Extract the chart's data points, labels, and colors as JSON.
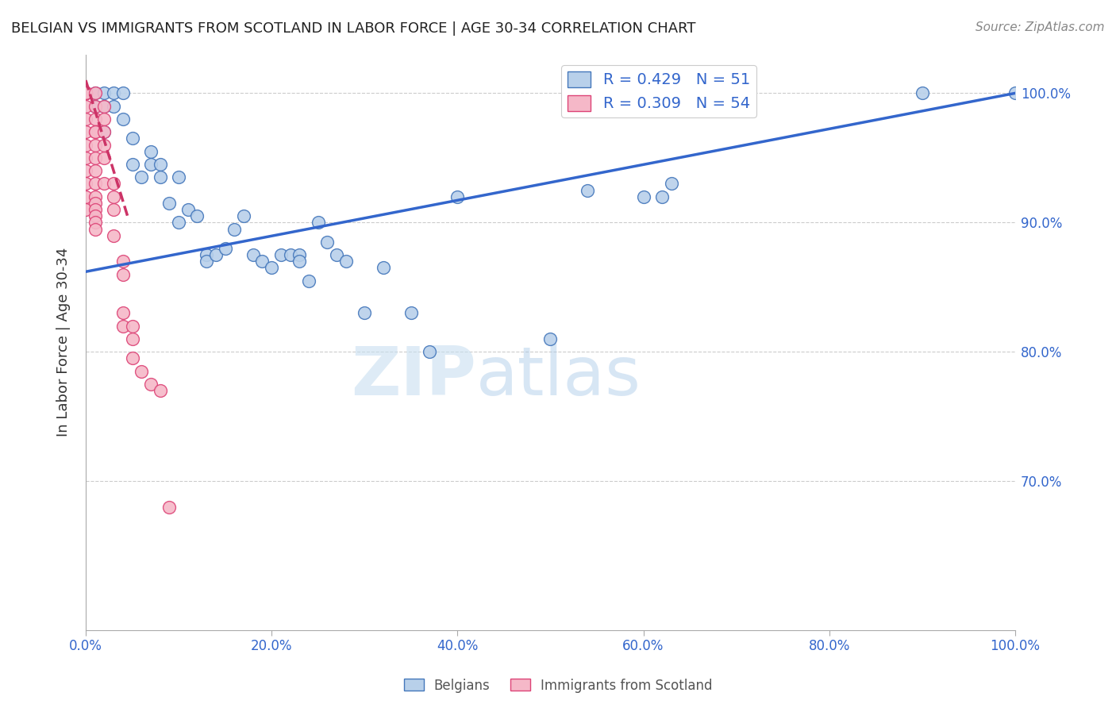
{
  "title": "BELGIAN VS IMMIGRANTS FROM SCOTLAND IN LABOR FORCE | AGE 30-34 CORRELATION CHART",
  "source": "Source: ZipAtlas.com",
  "ylabel": "In Labor Force | Age 30-34",
  "xlim": [
    0.0,
    1.0
  ],
  "ylim": [
    0.585,
    1.03
  ],
  "yticks": [
    0.7,
    0.8,
    0.9,
    1.0
  ],
  "ytick_labels": [
    "70.0%",
    "80.0%",
    "90.0%",
    "100.0%"
  ],
  "xtick_labels": [
    "0.0%",
    "20.0%",
    "40.0%",
    "60.0%",
    "80.0%",
    "100.0%"
  ],
  "xticks": [
    0.0,
    0.2,
    0.4,
    0.6,
    0.8,
    1.0
  ],
  "blue_R": 0.429,
  "blue_N": 51,
  "pink_R": 0.309,
  "pink_N": 54,
  "blue_color": "#b8d0ea",
  "pink_color": "#f5b8c8",
  "blue_edge_color": "#4477bb",
  "pink_edge_color": "#dd4477",
  "blue_line_color": "#3366cc",
  "pink_line_color": "#cc3366",
  "watermark_zip": "ZIP",
  "watermark_atlas": "atlas",
  "blue_scatter_x": [
    0.01,
    0.01,
    0.02,
    0.02,
    0.02,
    0.03,
    0.03,
    0.04,
    0.04,
    0.05,
    0.05,
    0.06,
    0.07,
    0.07,
    0.08,
    0.08,
    0.09,
    0.1,
    0.1,
    0.11,
    0.12,
    0.13,
    0.13,
    0.14,
    0.15,
    0.16,
    0.17,
    0.18,
    0.19,
    0.2,
    0.21,
    0.22,
    0.23,
    0.23,
    0.24,
    0.25,
    0.26,
    0.27,
    0.28,
    0.3,
    0.32,
    0.35,
    0.37,
    0.4,
    0.5,
    0.54,
    0.6,
    0.62,
    0.63,
    0.9,
    1.0
  ],
  "blue_scatter_y": [
    1.0,
    0.99,
    1.0,
    0.99,
    0.97,
    1.0,
    0.99,
    1.0,
    0.98,
    0.965,
    0.945,
    0.935,
    0.955,
    0.945,
    0.945,
    0.935,
    0.915,
    0.935,
    0.9,
    0.91,
    0.905,
    0.875,
    0.87,
    0.875,
    0.88,
    0.895,
    0.905,
    0.875,
    0.87,
    0.865,
    0.875,
    0.875,
    0.875,
    0.87,
    0.855,
    0.9,
    0.885,
    0.875,
    0.87,
    0.83,
    0.865,
    0.83,
    0.8,
    0.92,
    0.81,
    0.925,
    0.92,
    0.92,
    0.93,
    1.0,
    1.0
  ],
  "pink_scatter_x": [
    0.0,
    0.0,
    0.0,
    0.0,
    0.0,
    0.0,
    0.0,
    0.0,
    0.0,
    0.0,
    0.0,
    0.0,
    0.0,
    0.0,
    0.0,
    0.0,
    0.0,
    0.0,
    0.01,
    0.01,
    0.01,
    0.01,
    0.01,
    0.01,
    0.01,
    0.01,
    0.01,
    0.01,
    0.01,
    0.01,
    0.01,
    0.01,
    0.01,
    0.02,
    0.02,
    0.02,
    0.02,
    0.02,
    0.02,
    0.03,
    0.03,
    0.03,
    0.03,
    0.04,
    0.04,
    0.04,
    0.04,
    0.05,
    0.05,
    0.05,
    0.06,
    0.07,
    0.08,
    0.09
  ],
  "pink_scatter_y": [
    1.0,
    1.0,
    1.0,
    1.0,
    1.0,
    1.0,
    1.0,
    1.0,
    1.0,
    0.99,
    0.98,
    0.97,
    0.96,
    0.95,
    0.94,
    0.93,
    0.92,
    0.91,
    1.0,
    0.99,
    0.98,
    0.97,
    0.97,
    0.96,
    0.95,
    0.94,
    0.93,
    0.92,
    0.915,
    0.91,
    0.905,
    0.9,
    0.895,
    0.99,
    0.98,
    0.97,
    0.96,
    0.95,
    0.93,
    0.93,
    0.92,
    0.91,
    0.89,
    0.87,
    0.86,
    0.83,
    0.82,
    0.82,
    0.81,
    0.795,
    0.785,
    0.775,
    0.77,
    0.68
  ],
  "blue_trendline_x": [
    0.0,
    1.0
  ],
  "blue_trendline_y": [
    0.862,
    1.0
  ],
  "pink_trendline_x": [
    0.0,
    0.045
  ],
  "pink_trendline_y": [
    1.01,
    0.905
  ]
}
